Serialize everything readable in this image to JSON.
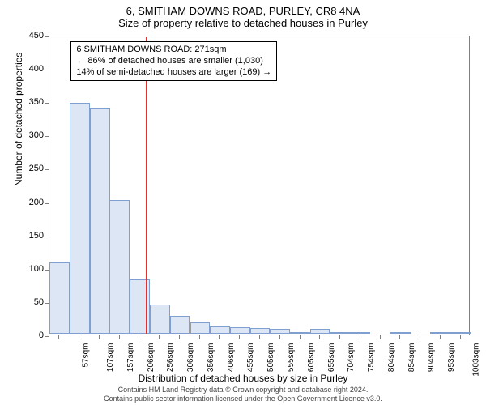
{
  "title_main": "6, SMITHAM DOWNS ROAD, PURLEY, CR8 4NA",
  "title_sub": "Size of property relative to detached houses in Purley",
  "ylabel": "Number of detached properties",
  "xlabel": "Distribution of detached houses by size in Purley",
  "chart": {
    "type": "histogram",
    "bar_fill": "#dce6f5",
    "bar_stroke": "#7f9fd0",
    "plot_border_color": "#808080",
    "background": "#ffffff",
    "refline_color": "#e03030",
    "refline_x": 271,
    "ylim": [
      0,
      450
    ],
    "ytick_step": 50,
    "xlim": [
      32,
      1078
    ],
    "xtick_start": 57,
    "xtick_step": 49.8,
    "xtick_unit": "sqm",
    "xtick_count": 21,
    "bar_width_data": 49.8,
    "bars": [
      {
        "x": 57,
        "y": 108
      },
      {
        "x": 107,
        "y": 348
      },
      {
        "x": 157,
        "y": 340
      },
      {
        "x": 206,
        "y": 202
      },
      {
        "x": 256,
        "y": 83
      },
      {
        "x": 306,
        "y": 45
      },
      {
        "x": 356,
        "y": 28
      },
      {
        "x": 406,
        "y": 18
      },
      {
        "x": 455,
        "y": 12
      },
      {
        "x": 505,
        "y": 11
      },
      {
        "x": 555,
        "y": 10
      },
      {
        "x": 605,
        "y": 9
      },
      {
        "x": 655,
        "y": 3
      },
      {
        "x": 704,
        "y": 8
      },
      {
        "x": 754,
        "y": 3
      },
      {
        "x": 804,
        "y": 2
      },
      {
        "x": 854,
        "y": 0
      },
      {
        "x": 904,
        "y": 1
      },
      {
        "x": 953,
        "y": 0
      },
      {
        "x": 1003,
        "y": 3
      },
      {
        "x": 1053,
        "y": 1
      }
    ],
    "tick_fontsize": 11,
    "label_fontsize": 12
  },
  "annotation": {
    "line1": "6 SMITHAM DOWNS ROAD: 271sqm",
    "line2": "← 86% of detached houses are smaller (1,030)",
    "line3": "14% of semi-detached houses are larger (169) →"
  },
  "footer": {
    "line1": "Contains HM Land Registry data © Crown copyright and database right 2024.",
    "line2": "Contains public sector information licensed under the Open Government Licence v3.0."
  }
}
